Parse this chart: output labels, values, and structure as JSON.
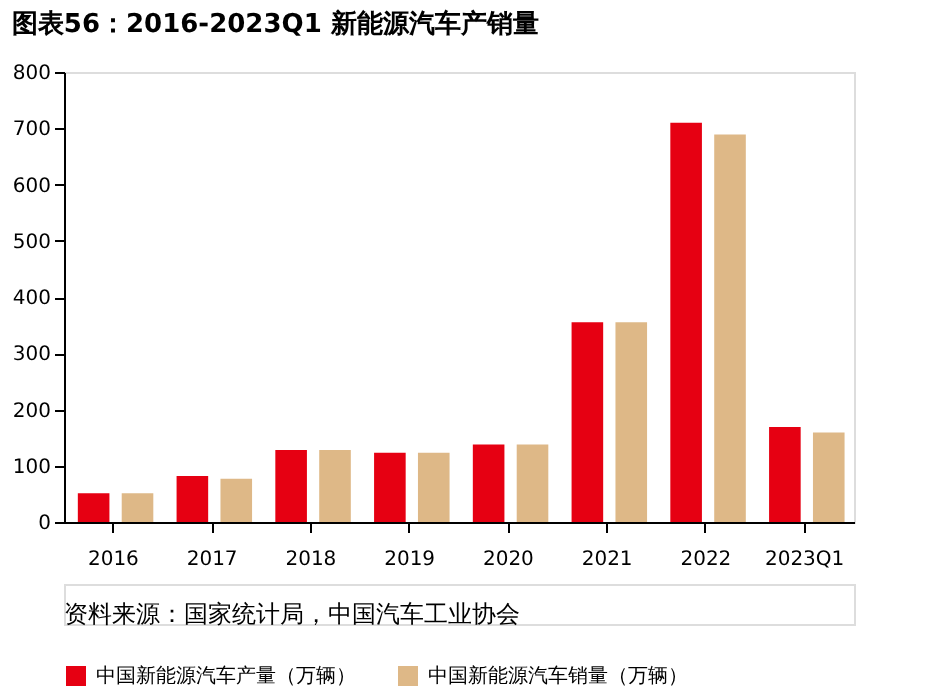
{
  "chart_data": {
    "type": "bar",
    "title": "图表56：2016-2023Q1 新能源汽车产销量",
    "categories": [
      "2016",
      "2017",
      "2018",
      "2019",
      "2020",
      "2021",
      "2022",
      "2023Q1"
    ],
    "series": [
      {
        "name": "中国新能源汽车产量（万辆）",
        "color": "#e60012",
        "values": [
          51,
          82,
          128,
          123,
          138,
          355,
          710,
          169
        ]
      },
      {
        "name": "中国新能源汽车销量（万辆）",
        "color": "#deb887",
        "values": [
          51,
          77,
          128,
          123,
          138,
          355,
          689,
          159
        ]
      }
    ],
    "ylim": [
      0,
      800
    ],
    "yticks": [
      0,
      100,
      200,
      300,
      400,
      500,
      600,
      700,
      800
    ],
    "grid": false,
    "legend": "bottom",
    "annotations": [
      "资料来源：国家统计局，中国汽车工业协会"
    ]
  }
}
